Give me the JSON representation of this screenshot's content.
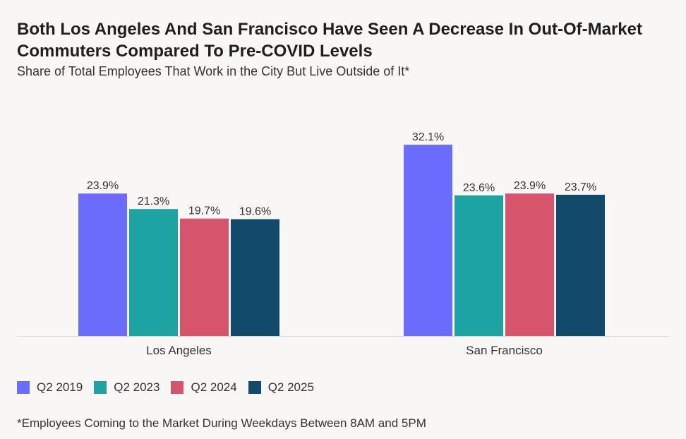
{
  "chart_data": {
    "type": "bar",
    "title": "Both Los Angeles And San Francisco Have Seen A Decrease In Out-Of-Market Commuters Compared To Pre-COVID Levels",
    "subtitle": "Share of Total Employees That Work in the City But Live Outside of It*",
    "categories": [
      "Los Angeles",
      "San Francisco"
    ],
    "series": [
      {
        "name": "Q2 2019",
        "color": "#6b6cfb",
        "values": [
          23.9,
          32.1
        ],
        "labels": [
          "23.9%",
          "32.1%"
        ]
      },
      {
        "name": "Q2 2023",
        "color": "#1ea3a3",
        "values": [
          21.3,
          23.6
        ],
        "labels": [
          "21.3%",
          "23.6%"
        ]
      },
      {
        "name": "Q2 2024",
        "color": "#d6556d",
        "values": [
          19.7,
          23.9
        ],
        "labels": [
          "19.7%",
          "23.9%"
        ]
      },
      {
        "name": "Q2 2025",
        "color": "#124a6b",
        "values": [
          19.6,
          23.7
        ],
        "labels": [
          "19.6%",
          "23.7%"
        ]
      }
    ],
    "ylim": [
      0,
      35
    ],
    "xlabel": "",
    "ylabel": "",
    "grid": false,
    "legend": "bottom-left",
    "footnote": "*Employees Coming to the Market During Weekdays Between 8AM and 5PM"
  }
}
